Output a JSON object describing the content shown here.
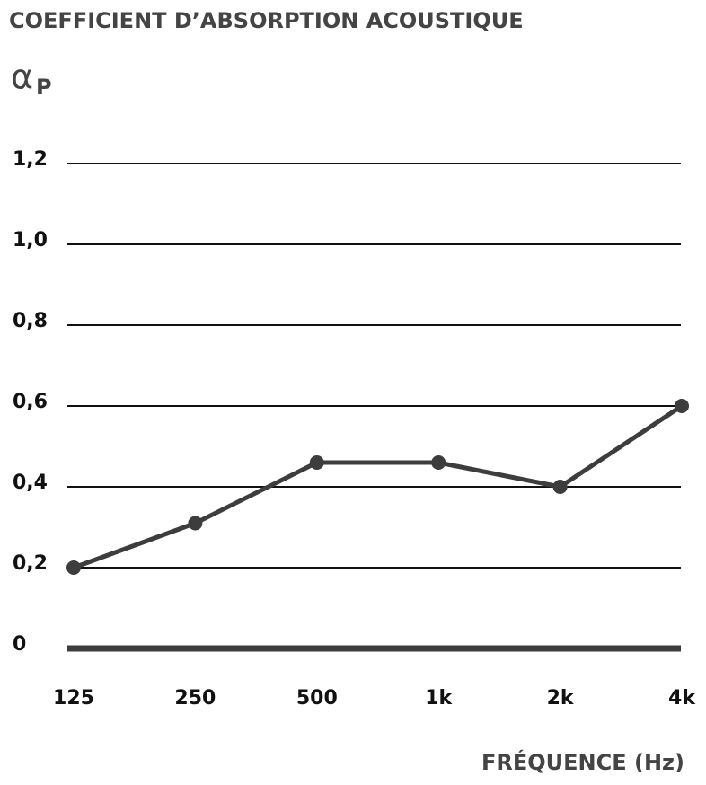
{
  "chart_data": {
    "type": "line",
    "title": "COEFFICIENT D’ABSORPTION ACOUSTIQUE",
    "ylabel": {
      "symbol": "α",
      "subscript": "P"
    },
    "xlabel": "FRÉQUENCE (Hz)",
    "categories": [
      "125",
      "250",
      "500",
      "1k",
      "2k",
      "4k"
    ],
    "series": [
      {
        "color": "#3d3d3d",
        "values": [
          0.2,
          0.31,
          0.46,
          0.46,
          0.4,
          0.6
        ]
      }
    ],
    "ylim": [
      0,
      1.2
    ],
    "yticks": [
      0,
      {
        "value": 0.2,
        "label": "0,2"
      },
      {
        "value": 0.4,
        "label": "0,4"
      },
      {
        "value": 0.6,
        "label": "0,6"
      },
      {
        "value": 0.8,
        "label": "0,8"
      },
      {
        "value": 1.0,
        "label": "1,0"
      },
      {
        "value": 1.2,
        "label": "1,2"
      }
    ],
    "grid": true
  }
}
